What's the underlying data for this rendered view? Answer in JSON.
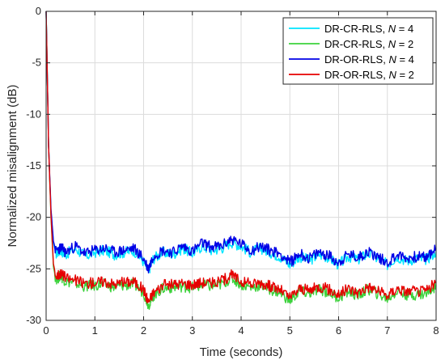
{
  "chart_data": {
    "type": "line",
    "title": "",
    "xlabel": "Time (seconds)",
    "ylabel": "Normalized misalignment (dB)",
    "xlim": [
      0,
      8
    ],
    "ylim": [
      -30,
      0
    ],
    "xticks": [
      0,
      1,
      2,
      3,
      4,
      5,
      6,
      7,
      8
    ],
    "yticks": [
      0,
      -5,
      -10,
      -15,
      -20,
      -25,
      -30
    ],
    "xtick_labels": [
      "0",
      "1",
      "2",
      "3",
      "4",
      "5",
      "6",
      "7",
      "8"
    ],
    "ytick_labels": [
      "0",
      "-5",
      "-10",
      "-15",
      "-20",
      "-25",
      "-30"
    ],
    "grid": true,
    "legend_position": "top-right",
    "series": [
      {
        "name_prefix": "DR-CR-RLS, ",
        "name_var": "N",
        "name_suffix": " = 4",
        "color": "#00e5ff",
        "x": [
          0,
          0.05,
          0.1,
          0.15,
          0.2,
          0.3,
          0.4,
          0.6,
          0.8,
          1.0,
          1.2,
          1.4,
          1.6,
          1.8,
          2.0,
          2.1,
          2.2,
          2.4,
          2.6,
          2.8,
          3.0,
          3.2,
          3.4,
          3.6,
          3.8,
          4.0,
          4.2,
          4.4,
          4.6,
          4.8,
          5.0,
          5.2,
          5.4,
          5.6,
          5.8,
          6.0,
          6.2,
          6.4,
          6.6,
          6.8,
          7.0,
          7.2,
          7.4,
          7.6,
          7.8,
          8.0
        ],
        "y": [
          0,
          -13,
          -19.5,
          -22.5,
          -23.5,
          -23.2,
          -23.6,
          -23.0,
          -23.8,
          -23.4,
          -23.2,
          -23.6,
          -23.4,
          -23.2,
          -24.3,
          -25.2,
          -24.0,
          -23.4,
          -23.6,
          -23.0,
          -23.5,
          -22.8,
          -23.2,
          -23.0,
          -22.4,
          -22.8,
          -23.4,
          -23.0,
          -23.4,
          -23.8,
          -24.6,
          -23.8,
          -24.2,
          -23.6,
          -23.9,
          -24.6,
          -23.8,
          -24.1,
          -23.5,
          -24.0,
          -24.6,
          -23.8,
          -24.2,
          -24.0,
          -24.1,
          -23.3
        ]
      },
      {
        "name_prefix": "DR-CR-RLS, ",
        "name_var": "N",
        "name_suffix": " = 2",
        "color": "#3cd23c",
        "x": [
          0,
          0.05,
          0.1,
          0.15,
          0.2,
          0.3,
          0.4,
          0.6,
          0.8,
          1.0,
          1.2,
          1.4,
          1.6,
          1.8,
          2.0,
          2.1,
          2.2,
          2.4,
          2.6,
          2.8,
          3.0,
          3.2,
          3.4,
          3.6,
          3.8,
          4.0,
          4.2,
          4.4,
          4.6,
          4.8,
          5.0,
          5.2,
          5.4,
          5.6,
          5.8,
          6.0,
          6.2,
          6.4,
          6.6,
          6.8,
          7.0,
          7.2,
          7.4,
          7.6,
          7.8,
          8.0
        ],
        "y": [
          0,
          -13,
          -20,
          -24.8,
          -26.0,
          -25.7,
          -26.2,
          -26.4,
          -26.7,
          -26.6,
          -26.5,
          -26.8,
          -26.6,
          -26.5,
          -27.3,
          -28.5,
          -27.6,
          -26.9,
          -26.8,
          -26.7,
          -26.8,
          -26.6,
          -26.7,
          -26.5,
          -25.9,
          -26.5,
          -26.8,
          -26.6,
          -27.0,
          -27.3,
          -28.1,
          -27.2,
          -27.4,
          -27.0,
          -27.3,
          -27.8,
          -27.2,
          -27.6,
          -27.0,
          -27.4,
          -27.9,
          -27.2,
          -27.5,
          -27.5,
          -27.4,
          -26.6
        ]
      },
      {
        "name_prefix": "DR-OR-RLS, ",
        "name_var": "N",
        "name_suffix": " = 4",
        "color": "#0000e6",
        "x": [
          0,
          0.05,
          0.1,
          0.15,
          0.2,
          0.3,
          0.4,
          0.6,
          0.8,
          1.0,
          1.2,
          1.4,
          1.6,
          1.8,
          2.0,
          2.1,
          2.2,
          2.4,
          2.6,
          2.8,
          3.0,
          3.2,
          3.4,
          3.6,
          3.8,
          4.0,
          4.2,
          4.4,
          4.6,
          4.8,
          5.0,
          5.2,
          5.4,
          5.6,
          5.8,
          6.0,
          6.2,
          6.4,
          6.6,
          6.8,
          7.0,
          7.2,
          7.4,
          7.6,
          7.8,
          8.0
        ],
        "y": [
          0,
          -13,
          -19.2,
          -22.3,
          -23.3,
          -22.9,
          -23.4,
          -22.8,
          -23.5,
          -23.2,
          -23.0,
          -23.4,
          -23.2,
          -23.0,
          -24.0,
          -25.0,
          -23.7,
          -23.2,
          -23.4,
          -22.8,
          -23.3,
          -22.5,
          -22.9,
          -22.8,
          -22.1,
          -22.6,
          -23.2,
          -22.8,
          -23.2,
          -23.5,
          -24.4,
          -23.5,
          -24.0,
          -23.4,
          -23.7,
          -24.4,
          -23.6,
          -23.9,
          -23.3,
          -23.8,
          -24.4,
          -23.6,
          -24.0,
          -23.8,
          -23.9,
          -23.0
        ]
      },
      {
        "name_prefix": "DR-OR-RLS, ",
        "name_var": "N",
        "name_suffix": " = 2",
        "color": "#e60000",
        "x": [
          0,
          0.05,
          0.1,
          0.15,
          0.2,
          0.3,
          0.4,
          0.6,
          0.8,
          1.0,
          1.2,
          1.4,
          1.6,
          1.8,
          2.0,
          2.1,
          2.2,
          2.4,
          2.6,
          2.8,
          3.0,
          3.2,
          3.4,
          3.6,
          3.8,
          4.0,
          4.2,
          4.4,
          4.6,
          4.8,
          5.0,
          5.2,
          5.4,
          5.6,
          5.8,
          6.0,
          6.2,
          6.4,
          6.6,
          6.8,
          7.0,
          7.2,
          7.4,
          7.6,
          7.8,
          8.0
        ],
        "y": [
          0,
          -13,
          -19.8,
          -24.5,
          -25.7,
          -25.4,
          -25.9,
          -26.1,
          -26.4,
          -26.3,
          -26.2,
          -26.5,
          -26.3,
          -26.2,
          -27.0,
          -28.2,
          -27.3,
          -26.6,
          -26.5,
          -26.4,
          -26.5,
          -26.3,
          -26.4,
          -26.2,
          -25.6,
          -26.2,
          -26.5,
          -26.3,
          -26.7,
          -27.0,
          -27.8,
          -26.9,
          -27.1,
          -26.7,
          -27.0,
          -27.5,
          -26.9,
          -27.3,
          -26.7,
          -27.1,
          -27.6,
          -26.9,
          -27.2,
          -27.2,
          -27.1,
          -26.3
        ]
      }
    ]
  }
}
